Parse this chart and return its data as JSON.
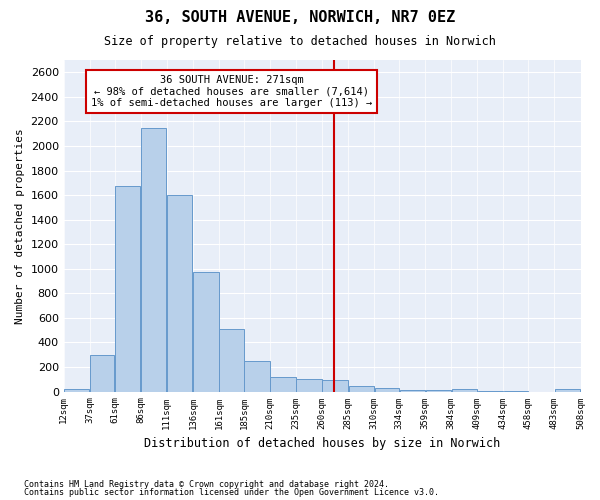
{
  "title": "36, SOUTH AVENUE, NORWICH, NR7 0EZ",
  "subtitle": "Size of property relative to detached houses in Norwich",
  "xlabel": "Distribution of detached houses by size in Norwich",
  "ylabel": "Number of detached properties",
  "property_line_value": 271,
  "annotation_title": "36 SOUTH AVENUE: 271sqm",
  "annotation_line1": "← 98% of detached houses are smaller (7,614)",
  "annotation_line2": "1% of semi-detached houses are larger (113) →",
  "footnote1": "Contains HM Land Registry data © Crown copyright and database right 2024.",
  "footnote2": "Contains public sector information licensed under the Open Government Licence v3.0.",
  "bar_color": "#b8d0ea",
  "bar_edge_color": "#6699cc",
  "line_color": "#cc0000",
  "annotation_box_color": "#cc0000",
  "bg_color": "#e8eef8",
  "ylim": [
    0,
    2700
  ],
  "yticks": [
    0,
    200,
    400,
    600,
    800,
    1000,
    1200,
    1400,
    1600,
    1800,
    2000,
    2200,
    2400,
    2600
  ],
  "bin_edges": [
    12,
    37,
    61,
    86,
    111,
    136,
    161,
    185,
    210,
    235,
    260,
    285,
    310,
    334,
    359,
    384,
    409,
    434,
    458,
    483,
    508
  ],
  "bin_labels": [
    "12sqm",
    "37sqm",
    "61sqm",
    "86sqm",
    "111sqm",
    "136sqm",
    "161sqm",
    "185sqm",
    "210sqm",
    "235sqm",
    "260sqm",
    "285sqm",
    "310sqm",
    "334sqm",
    "359sqm",
    "384sqm",
    "409sqm",
    "434sqm",
    "458sqm",
    "483sqm",
    "508sqm"
  ],
  "bar_heights": [
    20,
    300,
    1670,
    2150,
    1600,
    975,
    510,
    250,
    120,
    100,
    95,
    45,
    25,
    15,
    10,
    20,
    5,
    5,
    0,
    20
  ]
}
